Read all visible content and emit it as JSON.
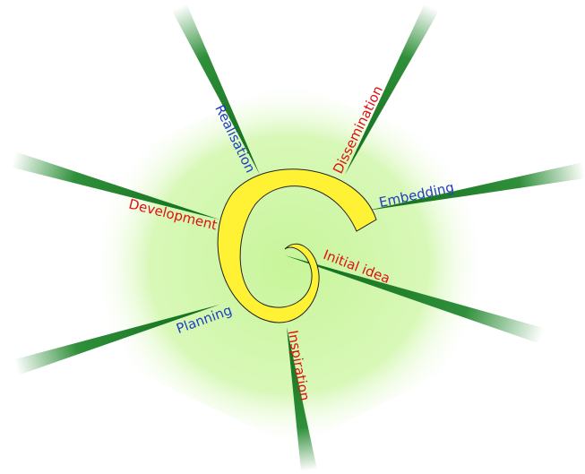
{
  "nodes": [
    {
      "label": "Realisation",
      "color": "#1f3fbf"
    },
    {
      "label": "Dissemination",
      "color": "#e01010"
    },
    {
      "label": "Embedding",
      "color": "#1f3fbf"
    },
    {
      "label": "Initial idea",
      "color": "#e01010"
    },
    {
      "label": "Inspiration",
      "color": "#e01010"
    },
    {
      "label": "Planning",
      "color": "#1f3fbf"
    },
    {
      "label": "Development",
      "color": "#e01010"
    }
  ]
}
